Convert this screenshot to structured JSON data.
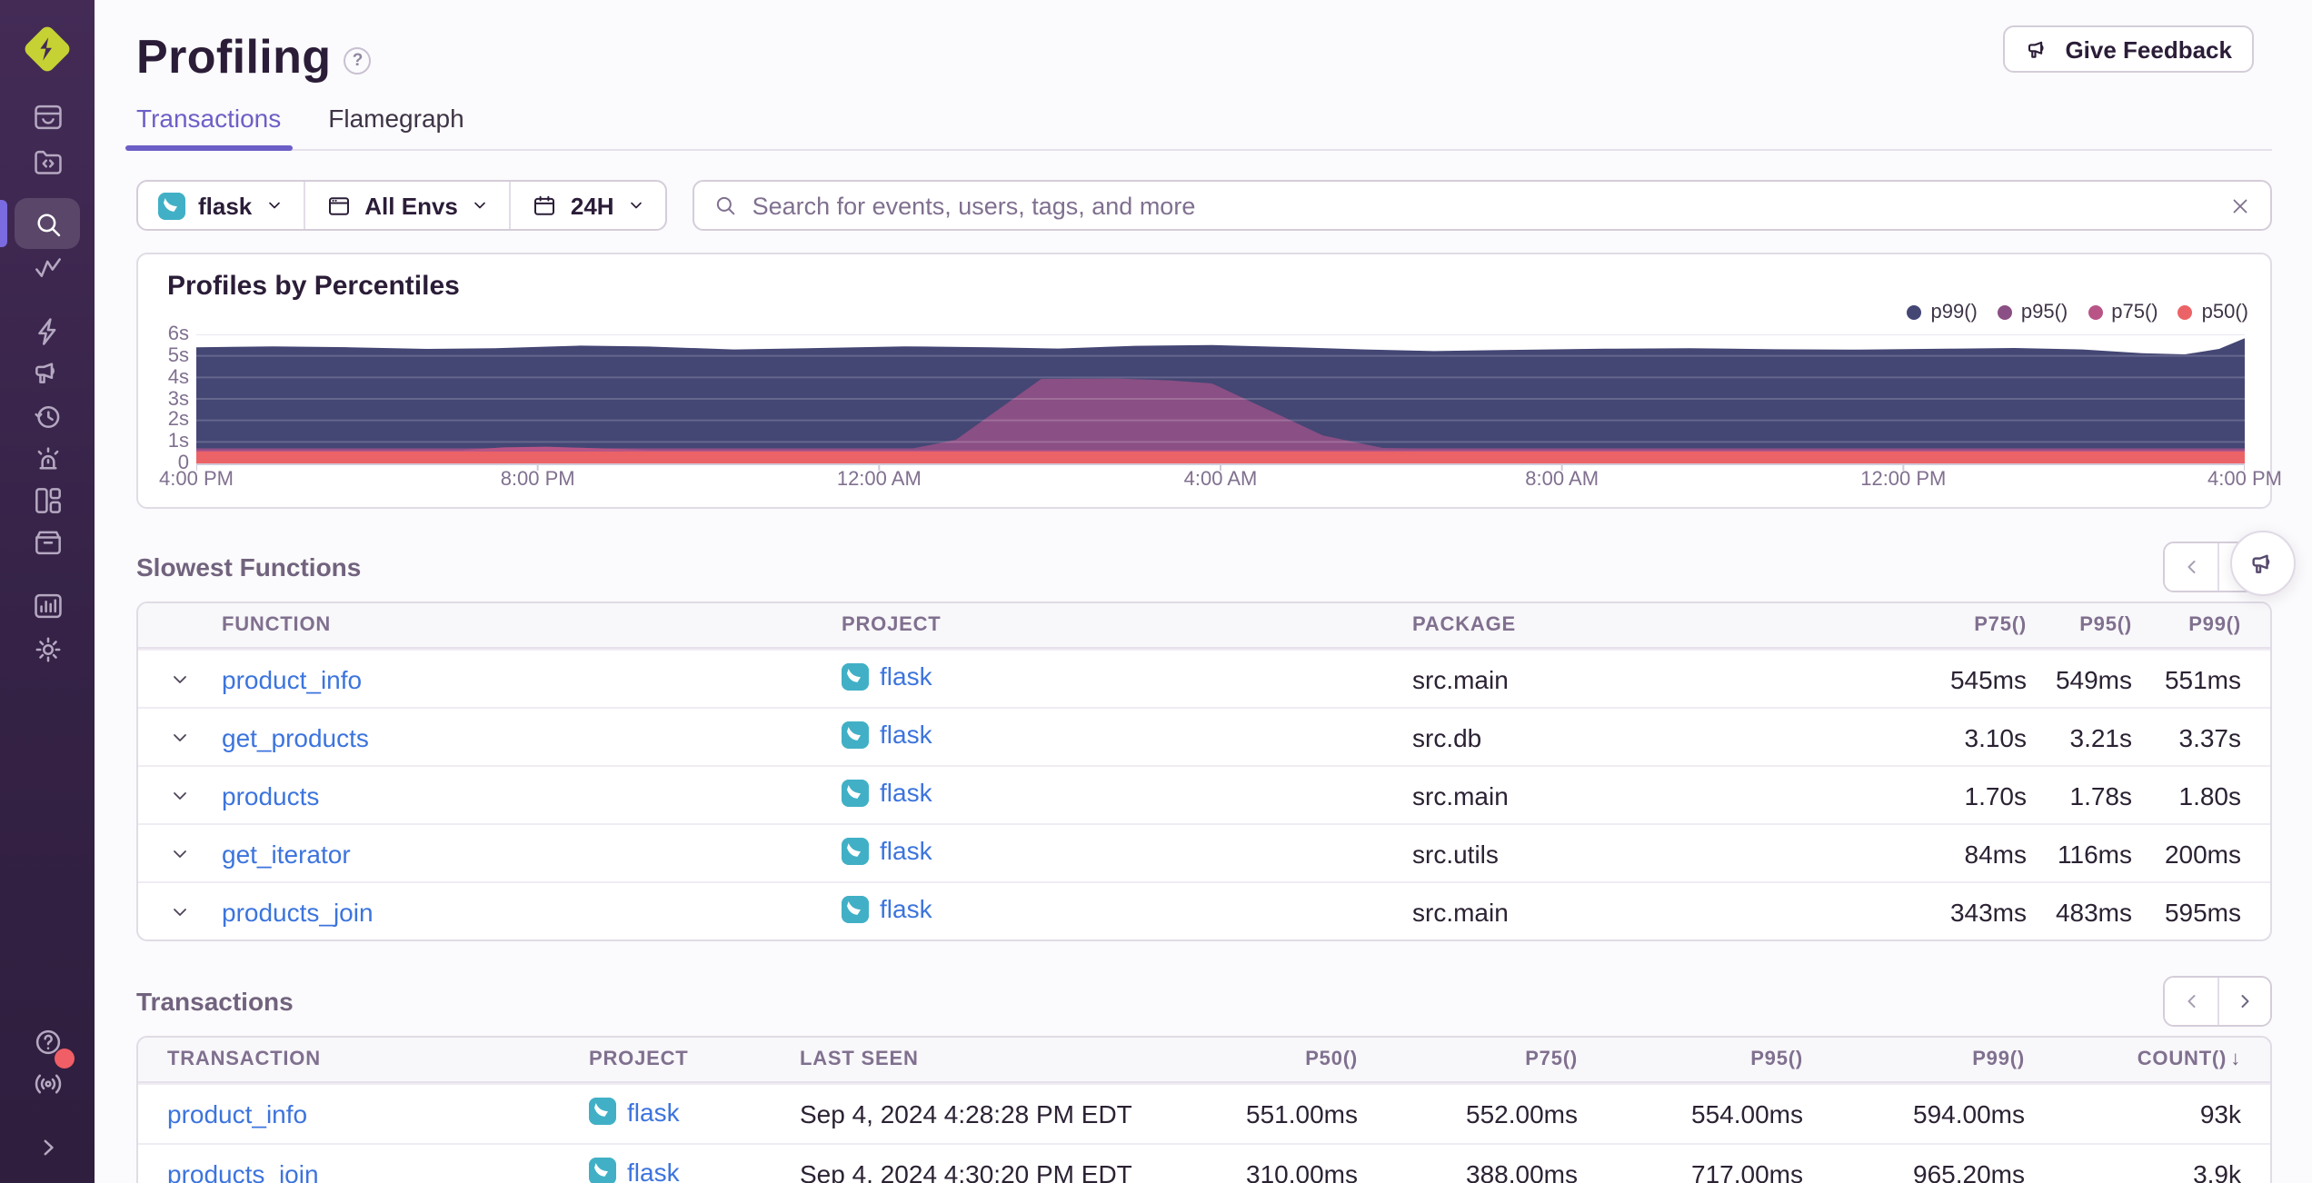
{
  "page": {
    "title": "Profiling"
  },
  "header": {
    "give_feedback_label": "Give Feedback"
  },
  "tabs": [
    {
      "label": "Transactions",
      "active": true
    },
    {
      "label": "Flamegraph",
      "active": false
    }
  ],
  "sidebar": {
    "icons": [
      "sentry-logo",
      "issues-icon",
      "projects-icon",
      "explore-search-icon",
      "traces-icon",
      "performance-lightning-icon",
      "user-feedback-megaphone-icon",
      "replays-history-icon",
      "alerts-siren-icon",
      "dashboards-icon",
      "releases-archive-icon",
      "stats-icon",
      "settings-gear-icon",
      "help-icon",
      "whats-new-broadcast-icon",
      "collapse-sidebar-icon"
    ],
    "active_item": "explore-search-icon",
    "notification_dot_color": "#f05e66"
  },
  "filters": {
    "project": {
      "label": "flask"
    },
    "environment": {
      "label": "All Envs"
    },
    "period": {
      "label": "24H"
    }
  },
  "search": {
    "placeholder": "Search for events, users, tags, and more"
  },
  "chart_data": {
    "type": "area",
    "title": "Profiles by Percentiles",
    "legend": [
      {
        "name": "p99()",
        "color": "#444674"
      },
      {
        "name": "p95()",
        "color": "#8a4f84"
      },
      {
        "name": "p75()",
        "color": "#b85586"
      },
      {
        "name": "p50()",
        "color": "#eb6366"
      }
    ],
    "x_ticks": [
      "4:00 PM",
      "8:00 PM",
      "12:00 AM",
      "4:00 AM",
      "8:00 AM",
      "12:00 PM",
      "4:00 PM"
    ],
    "y_ticks": [
      "0",
      "1s",
      "2s",
      "3s",
      "4s",
      "5s",
      "6s"
    ],
    "xlim": [
      0,
      24
    ],
    "ylim": [
      0,
      6
    ],
    "grid": true,
    "legend_position": "top-right",
    "series": [
      {
        "name": "p99()",
        "color": "#444674",
        "points": [
          [
            0,
            5.4
          ],
          [
            0.9,
            5.44
          ],
          [
            1.8,
            5.4
          ],
          [
            2.7,
            5.32
          ],
          [
            3.5,
            5.36
          ],
          [
            4.5,
            5.48
          ],
          [
            5.3,
            5.43
          ],
          [
            6.3,
            5.3
          ],
          [
            7.3,
            5.37
          ],
          [
            8.3,
            5.44
          ],
          [
            9.3,
            5.4
          ],
          [
            10.1,
            5.34
          ],
          [
            11.0,
            5.47
          ],
          [
            11.9,
            5.5
          ],
          [
            12.8,
            5.41
          ],
          [
            13.7,
            5.3
          ],
          [
            14.5,
            5.22
          ],
          [
            15.5,
            5.28
          ],
          [
            16.5,
            5.33
          ],
          [
            17.5,
            5.36
          ],
          [
            18.5,
            5.31
          ],
          [
            19.5,
            5.29
          ],
          [
            20.5,
            5.33
          ],
          [
            21.3,
            5.37
          ],
          [
            22.1,
            5.3
          ],
          [
            22.8,
            5.12
          ],
          [
            23.3,
            5.07
          ],
          [
            23.7,
            5.32
          ],
          [
            24,
            5.82
          ]
        ]
      },
      {
        "name": "p95()",
        "color": "#8a4f84",
        "points": [
          [
            0,
            0.7
          ],
          [
            8.4,
            0.7
          ],
          [
            8.9,
            1.1
          ],
          [
            9.9,
            3.93
          ],
          [
            10.8,
            3.95
          ],
          [
            11.4,
            3.86
          ],
          [
            11.9,
            3.72
          ],
          [
            13.2,
            1.3
          ],
          [
            13.9,
            0.72
          ],
          [
            14.3,
            0.7
          ],
          [
            24,
            0.7
          ]
        ]
      },
      {
        "name": "p75()",
        "color": "#b85586",
        "points": [
          [
            0,
            0.62
          ],
          [
            3.1,
            0.62
          ],
          [
            3.6,
            0.74
          ],
          [
            4.1,
            0.78
          ],
          [
            4.7,
            0.7
          ],
          [
            5.3,
            0.62
          ],
          [
            24,
            0.62
          ]
        ]
      },
      {
        "name": "p50()",
        "color": "#eb6366",
        "points": [
          [
            0,
            0.55
          ],
          [
            24,
            0.55
          ]
        ]
      }
    ]
  },
  "slowest_functions": {
    "heading": "Slowest Functions",
    "columns": [
      "Function",
      "Project",
      "Package",
      "P75()",
      "P95()",
      "P99()"
    ],
    "rows": [
      {
        "function": "product_info",
        "project": "flask",
        "package": "src.main",
        "p75": "545ms",
        "p95": "549ms",
        "p99": "551ms"
      },
      {
        "function": "get_products",
        "project": "flask",
        "package": "src.db",
        "p75": "3.10s",
        "p95": "3.21s",
        "p99": "3.37s"
      },
      {
        "function": "products",
        "project": "flask",
        "package": "src.main",
        "p75": "1.70s",
        "p95": "1.78s",
        "p99": "1.80s"
      },
      {
        "function": "get_iterator",
        "project": "flask",
        "package": "src.utils",
        "p75": "84ms",
        "p95": "116ms",
        "p99": "200ms"
      },
      {
        "function": "products_join",
        "project": "flask",
        "package": "src.main",
        "p75": "343ms",
        "p95": "483ms",
        "p99": "595ms"
      }
    ]
  },
  "transactions": {
    "heading": "Transactions",
    "columns": [
      "Transaction",
      "Project",
      "Last Seen",
      "P50()",
      "P75()",
      "P95()",
      "P99()",
      "Count()"
    ],
    "sort": {
      "column": "Count()",
      "direction": "desc",
      "arrow": "↓"
    },
    "rows": [
      {
        "transaction": "product_info",
        "project": "flask",
        "last_seen": "Sep 4, 2024 4:28:28 PM EDT",
        "p50": "551.00ms",
        "p75": "552.00ms",
        "p95": "554.00ms",
        "p99": "594.00ms",
        "count": "93k"
      },
      {
        "transaction": "products_join",
        "project": "flask",
        "last_seen": "Sep 4, 2024 4:30:20 PM EDT",
        "p50": "310.00ms",
        "p75": "388.00ms",
        "p95": "717.00ms",
        "p99": "965.20ms",
        "count": "3.9k"
      }
    ]
  },
  "colors": {
    "accent_purple": "#6c5fc7",
    "link_blue": "#3c74dd",
    "flask_badge_teal": "#41b0c6",
    "sidebar_top": "#432b56",
    "sidebar_bottom": "#2f1e3e",
    "logo_lime": "#c6d134"
  }
}
